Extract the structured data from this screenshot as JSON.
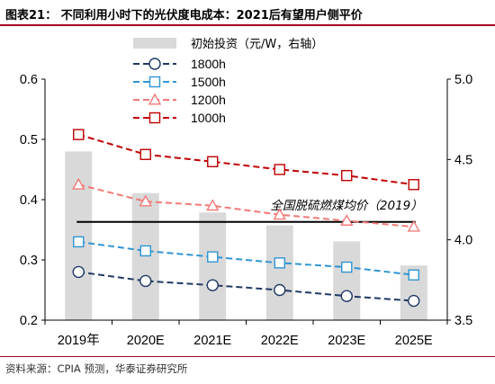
{
  "header": {
    "title": "图表21： 不同利用小时下的光伏度电成本：2021后有望用户侧平价"
  },
  "source": "资料来源：CPIA 预测，华泰证券研究所",
  "chart_data": {
    "type": "bar",
    "categories": [
      "2019年",
      "2020E",
      "2021E",
      "2022E",
      "2023E",
      "2025E"
    ],
    "bars": {
      "name": "初始投资（元/W，右轴）",
      "values": [
        4.55,
        4.29,
        4.17,
        4.09,
        3.99,
        3.84
      ],
      "color": "#d9d9d9",
      "axis": "right"
    },
    "series": [
      {
        "name": "1800h",
        "values": [
          0.28,
          0.265,
          0.258,
          0.25,
          0.24,
          0.232
        ],
        "color": "#1f3864",
        "marker": "circle"
      },
      {
        "name": "1500h",
        "values": [
          0.33,
          0.315,
          0.305,
          0.295,
          0.288,
          0.275
        ],
        "color": "#2e95d3",
        "marker": "square"
      },
      {
        "name": "1200h",
        "values": [
          0.425,
          0.397,
          0.39,
          0.375,
          0.365,
          0.355
        ],
        "color": "#f07a78",
        "marker": "triangle"
      },
      {
        "name": "1000h",
        "values": [
          0.508,
          0.475,
          0.463,
          0.45,
          0.44,
          0.425
        ],
        "color": "#c00000",
        "marker": "square"
      }
    ],
    "reference_line": {
      "label": "全国脱硫燃煤均价（2019）",
      "value": 0.363,
      "color": "#000000"
    },
    "left_axis": {
      "ylim": [
        0.2,
        0.6
      ],
      "ticks": [
        "0.2",
        "0.3",
        "0.4",
        "0.5",
        "0.6"
      ]
    },
    "right_axis": {
      "ylim": [
        3.5,
        5.0
      ],
      "ticks": [
        "3.5",
        "4.0",
        "4.5",
        "5.0"
      ]
    },
    "grid": false,
    "legend_position": "top-center"
  }
}
